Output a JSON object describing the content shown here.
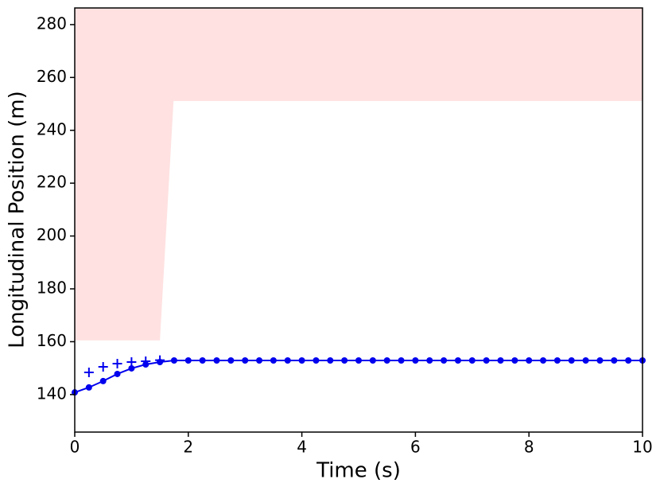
{
  "chart_data": {
    "type": "line",
    "xlabel": "Time (s)",
    "ylabel": "Longitudinal Position (m)",
    "xlim": [
      0,
      10
    ],
    "ylim": [
      125.8,
      286.3
    ],
    "xticks": [
      0,
      2,
      4,
      6,
      8,
      10
    ],
    "yticks": [
      140,
      160,
      180,
      200,
      220,
      240,
      260,
      280
    ],
    "fill_region": {
      "color": "#ffe1e1",
      "x": [
        0,
        1.5,
        1.74,
        10
      ],
      "lower": [
        160.5,
        160.5,
        251.1,
        251.1
      ]
    },
    "series": [
      {
        "color": "#0000ee",
        "marker": "circle",
        "line": true,
        "x": [
          0,
          0.25,
          0.5,
          0.75,
          1,
          1.25,
          1.5,
          1.75,
          2,
          2.25,
          2.5,
          2.75,
          3,
          3.25,
          3.5,
          3.75,
          4,
          4.25,
          4.5,
          4.75,
          5,
          5.25,
          5.5,
          5.75,
          6,
          6.25,
          6.5,
          6.75,
          7,
          7.25,
          7.5,
          7.75,
          8,
          8.25,
          8.5,
          8.75,
          9,
          9.25,
          9.5,
          9.75,
          10
        ],
        "values": [
          140.8,
          142.7,
          145.1,
          147.8,
          149.9,
          151.4,
          152.3,
          152.9,
          152.9,
          152.9,
          152.9,
          152.9,
          152.9,
          152.9,
          152.9,
          152.9,
          152.9,
          152.9,
          152.9,
          152.9,
          152.9,
          152.9,
          152.9,
          152.9,
          152.9,
          152.9,
          152.9,
          152.9,
          152.9,
          152.9,
          152.9,
          152.9,
          152.9,
          152.9,
          152.9,
          152.9,
          152.9,
          152.9,
          152.9,
          152.9,
          152.9
        ]
      },
      {
        "color": "#0000ee",
        "marker": "plus",
        "line": false,
        "x": [
          0.25,
          0.5,
          0.75,
          1,
          1.25,
          1.5
        ],
        "values": [
          148.4,
          150.5,
          151.7,
          152.3,
          152.6,
          153
        ]
      }
    ]
  }
}
